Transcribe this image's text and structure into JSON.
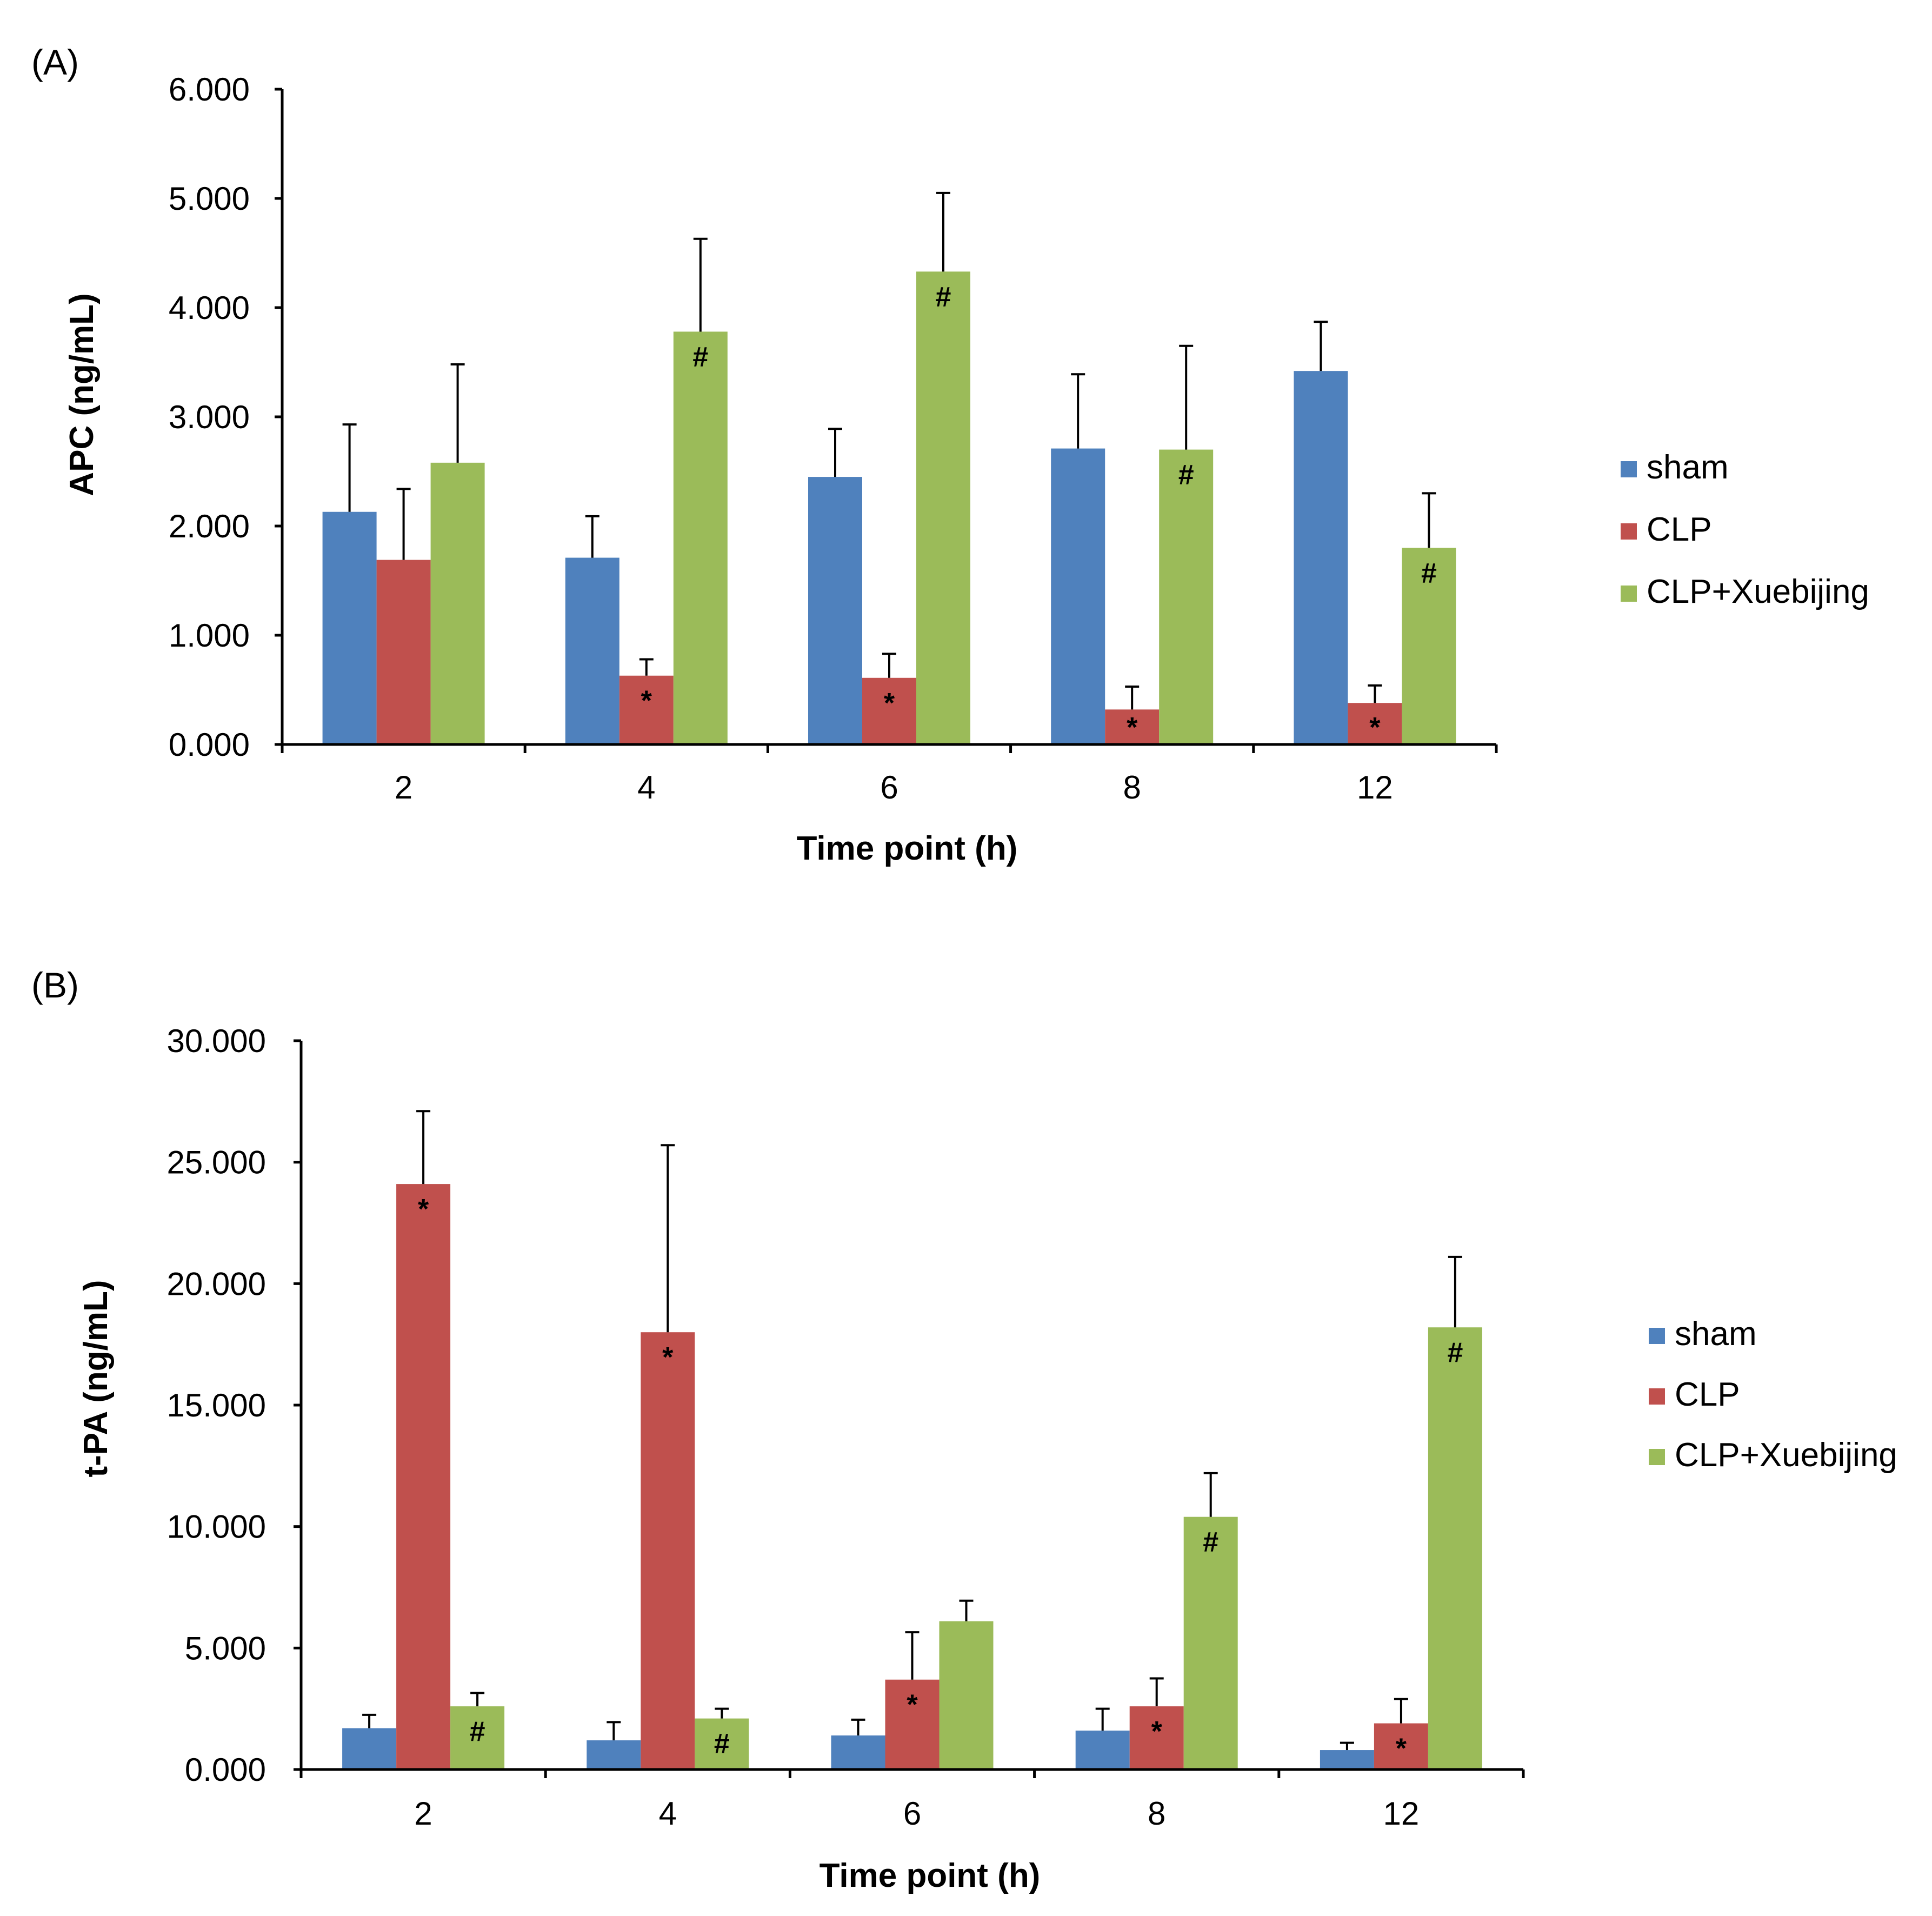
{
  "colors": {
    "sham": "#4f81bd",
    "CLP": "#c0504d",
    "CLP+Xuebijing": "#9bbb59"
  },
  "chart_data": [
    {
      "type": "bar",
      "panel": "(A)",
      "xlabel": "Time point (h)",
      "ylabel": "APC (ng/mL)",
      "ylim": [
        0,
        6
      ],
      "yticks": [
        0,
        1,
        2,
        3,
        4,
        5,
        6
      ],
      "yticklabels": [
        "0.000",
        "1.000",
        "2.000",
        "3.000",
        "4.000",
        "5.000",
        "6.000"
      ],
      "categories": [
        "2",
        "4",
        "6",
        "8",
        "12"
      ],
      "legend_position": "right",
      "series": [
        {
          "name": "sham",
          "values": [
            2.13,
            1.71,
            2.45,
            2.71,
            3.42
          ],
          "errors": [
            0.8,
            0.38,
            0.44,
            0.68,
            0.45
          ],
          "marks": [
            "",
            "",
            "",
            "",
            ""
          ]
        },
        {
          "name": "CLP",
          "values": [
            1.69,
            0.63,
            0.61,
            0.32,
            0.38
          ],
          "errors": [
            0.65,
            0.15,
            0.22,
            0.21,
            0.16
          ],
          "marks": [
            "",
            "*",
            "*",
            "*",
            "*"
          ]
        },
        {
          "name": "CLP+Xuebijing",
          "values": [
            2.58,
            3.78,
            4.33,
            2.7,
            1.8
          ],
          "errors": [
            0.9,
            0.85,
            0.72,
            0.95,
            0.5
          ],
          "marks": [
            "",
            "#",
            "#",
            "#",
            "#"
          ]
        }
      ]
    },
    {
      "type": "bar",
      "panel": "(B)",
      "xlabel": "Time point (h)",
      "ylabel": "t-PA (ng/mL)",
      "ylim": [
        0,
        30
      ],
      "yticks": [
        0,
        5,
        10,
        15,
        20,
        25,
        30
      ],
      "yticklabels": [
        "0.000",
        "5.000",
        "10.000",
        "15.000",
        "20.000",
        "25.000",
        "30.000"
      ],
      "categories": [
        "2",
        "4",
        "6",
        "8",
        "12"
      ],
      "legend_position": "right",
      "series": [
        {
          "name": "sham",
          "values": [
            1.7,
            1.2,
            1.4,
            1.6,
            0.8
          ],
          "errors": [
            0.55,
            0.75,
            0.65,
            0.9,
            0.3
          ],
          "marks": [
            "",
            "",
            "",
            "",
            ""
          ]
        },
        {
          "name": "CLP",
          "values": [
            24.1,
            18.0,
            3.7,
            2.6,
            1.9
          ],
          "errors": [
            3.0,
            7.7,
            1.95,
            1.15,
            1.0
          ],
          "marks": [
            "*",
            "*",
            "*",
            "*",
            "*"
          ]
        },
        {
          "name": "CLP+Xuebijing",
          "values": [
            2.6,
            2.1,
            6.1,
            10.4,
            18.2
          ],
          "errors": [
            0.55,
            0.4,
            0.85,
            1.8,
            2.9
          ],
          "marks": [
            "#",
            "#",
            "",
            "#",
            "#"
          ]
        }
      ]
    }
  ]
}
